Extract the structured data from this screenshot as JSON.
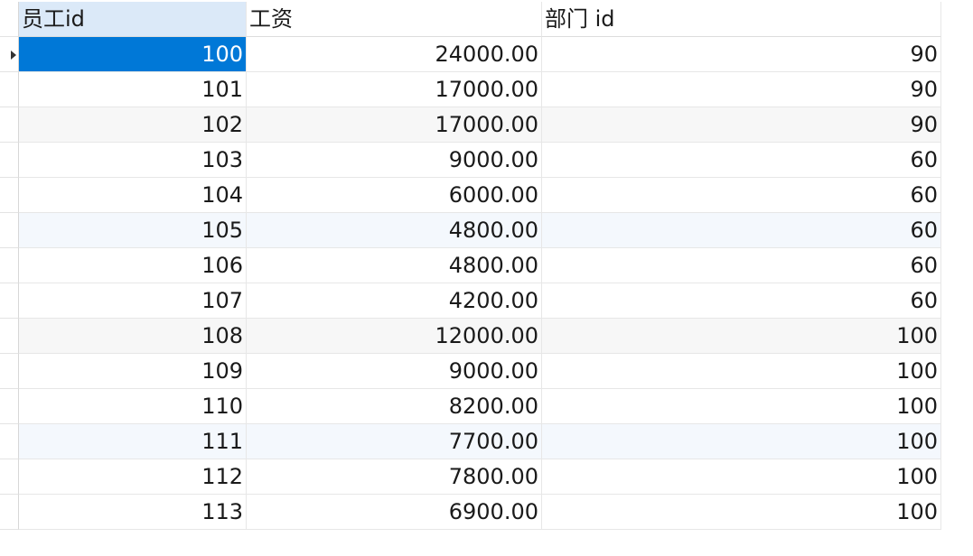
{
  "columns": [
    "员工id",
    "工资",
    "部门 id"
  ],
  "rows": [
    {
      "id": "100",
      "salary": "24000.00",
      "dept": "90"
    },
    {
      "id": "101",
      "salary": "17000.00",
      "dept": "90"
    },
    {
      "id": "102",
      "salary": "17000.00",
      "dept": "90"
    },
    {
      "id": "103",
      "salary": "9000.00",
      "dept": "60"
    },
    {
      "id": "104",
      "salary": "6000.00",
      "dept": "60"
    },
    {
      "id": "105",
      "salary": "4800.00",
      "dept": "60"
    },
    {
      "id": "106",
      "salary": "4800.00",
      "dept": "60"
    },
    {
      "id": "107",
      "salary": "4200.00",
      "dept": "60"
    },
    {
      "id": "108",
      "salary": "12000.00",
      "dept": "100"
    },
    {
      "id": "109",
      "salary": "9000.00",
      "dept": "100"
    },
    {
      "id": "110",
      "salary": "8200.00",
      "dept": "100"
    },
    {
      "id": "111",
      "salary": "7700.00",
      "dept": "100"
    },
    {
      "id": "112",
      "salary": "7800.00",
      "dept": "100"
    },
    {
      "id": "113",
      "salary": "6900.00",
      "dept": "100"
    }
  ],
  "selected_row": 0,
  "colors": {
    "selection": "#0078d7",
    "header_selected": "#dbe9f8",
    "row_alt_gray": "#f7f7f7",
    "row_alt_blue": "#f4f8fd"
  },
  "icons": {
    "row_indicator": "current-row-arrow-icon"
  }
}
